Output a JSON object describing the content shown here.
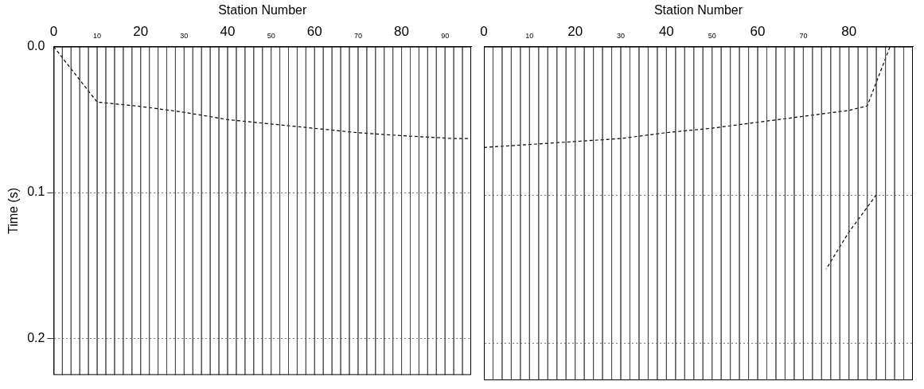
{
  "chart_data": [
    {
      "type": "line",
      "x_label": "Station Number",
      "y_label": "Time (s)",
      "xlim": [
        0,
        96
      ],
      "xticks": [
        0,
        10,
        20,
        30,
        40,
        50,
        60,
        70,
        80,
        90
      ],
      "ylim": [
        0,
        0.225
      ],
      "yticks": [
        {
          "value": 0,
          "label": "0.0"
        },
        0.1,
        0.2
      ],
      "grid": true,
      "traces": [
        0,
        2,
        4,
        6,
        8,
        10,
        12,
        14,
        16,
        18,
        20,
        22,
        24,
        26,
        28,
        30,
        32,
        34,
        36,
        38,
        40,
        42,
        44,
        46,
        48,
        50,
        52,
        54,
        56,
        58,
        60,
        62,
        64,
        66,
        68,
        70,
        72,
        74,
        76,
        78,
        80,
        82,
        84,
        86,
        88,
        90,
        92,
        94
      ],
      "series": [
        {
          "color": "#000000",
          "line_style": "dashed",
          "x": [
            0,
            10,
            20,
            30,
            40,
            50,
            60,
            70,
            80,
            92,
            96
          ],
          "values": [
            0.0,
            0.038,
            0.041,
            0.045,
            0.05,
            0.053,
            0.056,
            0.059,
            0.061,
            0.063,
            0.063
          ]
        }
      ]
    },
    {
      "type": "line",
      "x_label": "Station Number",
      "xlim": [
        0,
        94
      ],
      "xticks": [
        0,
        10,
        20,
        30,
        40,
        50,
        60,
        70,
        80
      ],
      "ylim": [
        0,
        0.225
      ],
      "yticks": [
        {
          "value": 0,
          "label": "0.0"
        },
        0.1,
        0.2
      ],
      "grid": true,
      "tick_labels": "x",
      "traces": [
        0,
        2,
        4,
        6,
        8,
        10,
        12,
        14,
        16,
        18,
        20,
        22,
        24,
        26,
        28,
        30,
        32,
        34,
        36,
        38,
        40,
        42,
        44,
        46,
        48,
        50,
        52,
        54,
        56,
        58,
        60,
        62,
        64,
        66,
        68,
        70,
        72,
        74,
        76,
        78,
        80,
        82,
        84,
        86,
        88,
        90,
        92
      ],
      "series": [
        {
          "color": "#000000",
          "line_style": "dashed",
          "x": [
            0,
            10,
            20,
            30,
            40,
            50,
            60,
            70,
            80,
            84,
            89
          ],
          "values": [
            0.068,
            0.066,
            0.064,
            0.062,
            0.058,
            0.055,
            0.051,
            0.047,
            0.043,
            0.04,
            0.0
          ]
        },
        {
          "color": "#000000",
          "line_style": "dashed",
          "x": [
            86,
            80,
            75
          ],
          "values": [
            0.1,
            0.125,
            0.15
          ]
        }
      ]
    }
  ]
}
